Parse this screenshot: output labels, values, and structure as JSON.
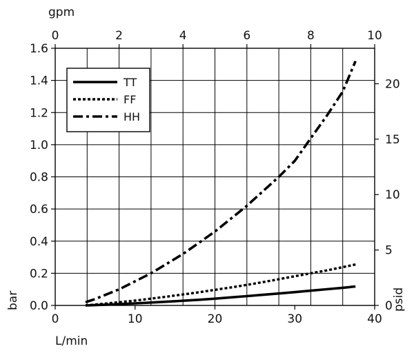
{
  "chart_data": {
    "type": "line",
    "x_label": "L/min",
    "y_label": "bar",
    "x2_label": "gpm",
    "y2_label": "psid",
    "xlim": [
      0,
      40
    ],
    "ylim": [
      0,
      1.6
    ],
    "x_ticks": [
      0,
      10,
      20,
      30,
      40
    ],
    "y_ticks": [
      0.0,
      0.2,
      0.4,
      0.6,
      0.8,
      1.0,
      1.2,
      1.4,
      1.6
    ],
    "y_tick_labels": [
      "0.0",
      "0.2",
      "0.4",
      "0.6",
      "0.8",
      "1.0",
      "1.2",
      "1.4",
      "1.6"
    ],
    "x2_lim": [
      0,
      10
    ],
    "x2_ticks": [
      0,
      2,
      4,
      6,
      8,
      10
    ],
    "y2_lim": [
      0,
      23.2
    ],
    "y2_ticks": [
      0,
      5,
      10,
      15,
      20
    ],
    "grid": true,
    "legend_position": "top-left",
    "series": [
      {
        "name": "TT",
        "style": "solid",
        "x": [
          3.8,
          6,
          8,
          10,
          12,
          14,
          16,
          18,
          20,
          22,
          24,
          26,
          28,
          30,
          32,
          34,
          36,
          37.6
        ],
        "y": [
          0.0,
          0.004,
          0.008,
          0.013,
          0.018,
          0.023,
          0.029,
          0.035,
          0.042,
          0.05,
          0.058,
          0.066,
          0.074,
          0.083,
          0.092,
          0.101,
          0.11,
          0.118
        ]
      },
      {
        "name": "FF",
        "style": "dotted",
        "x": [
          3.8,
          6,
          8,
          10,
          12,
          14,
          16,
          18,
          20,
          22,
          24,
          26,
          28,
          30,
          32,
          34,
          36,
          37.6
        ],
        "y": [
          0.0,
          0.01,
          0.02,
          0.03,
          0.042,
          0.055,
          0.068,
          0.082,
          0.097,
          0.112,
          0.128,
          0.145,
          0.163,
          0.182,
          0.2,
          0.218,
          0.238,
          0.255
        ]
      },
      {
        "name": "HH",
        "style": "dash-dot",
        "x": [
          3.8,
          5,
          6,
          8,
          10,
          12,
          14,
          16,
          18,
          20,
          22,
          24,
          26,
          28,
          30,
          32,
          34,
          36,
          37.6
        ],
        "y": [
          0.02,
          0.04,
          0.06,
          0.1,
          0.15,
          0.2,
          0.26,
          0.32,
          0.39,
          0.46,
          0.54,
          0.62,
          0.71,
          0.8,
          0.9,
          1.04,
          1.18,
          1.33,
          1.52
        ]
      }
    ]
  }
}
